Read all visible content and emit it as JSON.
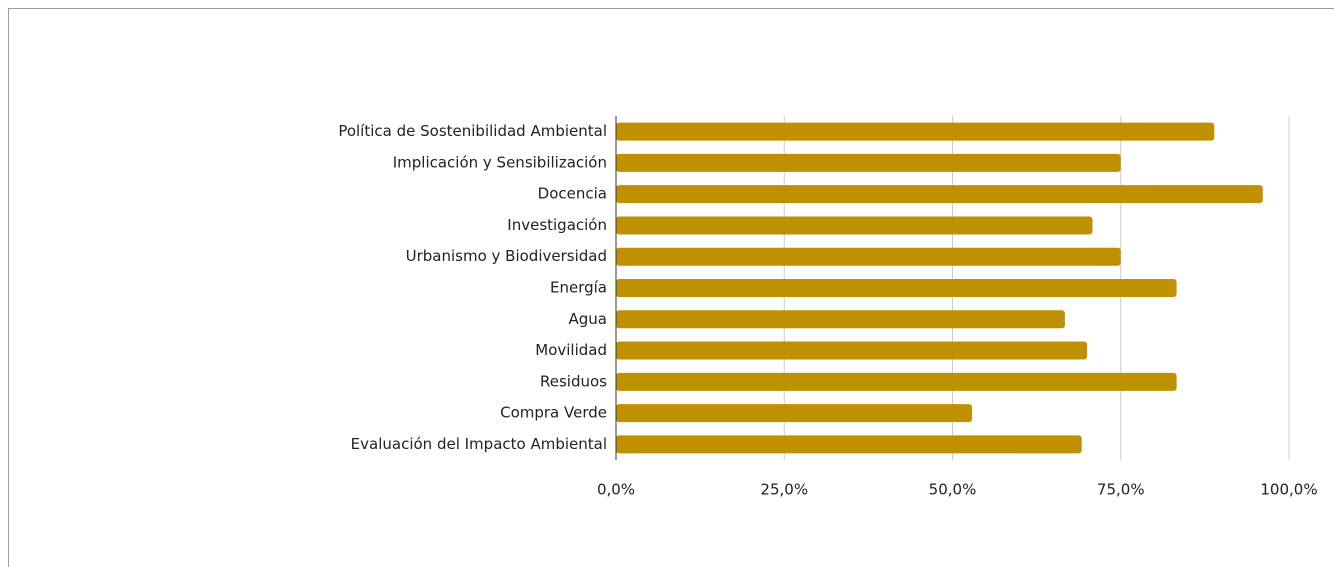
{
  "chart_data": {
    "type": "bar",
    "orientation": "horizontal",
    "categories": [
      "Política de Sostenibilidad Ambiental",
      "Implicación y Sensibilización",
      "Docencia",
      "Investigación",
      "Urbanismo y Biodiversidad",
      "Energía",
      "Agua",
      "Movilidad",
      "Residuos",
      "Compra Verde",
      "Evaluación del Impacto Ambiental"
    ],
    "values": [
      88.9,
      75,
      96.1,
      70.8,
      75,
      83.3,
      66.7,
      70,
      83.3,
      52.9,
      69.2
    ],
    "color": "#bf9000",
    "xlim": [
      0,
      100
    ],
    "xticks": [
      {
        "value": 0,
        "label": "0,0%"
      },
      {
        "value": 25,
        "label": "25,0%"
      },
      {
        "value": 50,
        "label": "50,0%"
      },
      {
        "value": 75,
        "label": "75,0%"
      },
      {
        "value": 100,
        "label": "100,0%"
      }
    ],
    "grid": true
  }
}
